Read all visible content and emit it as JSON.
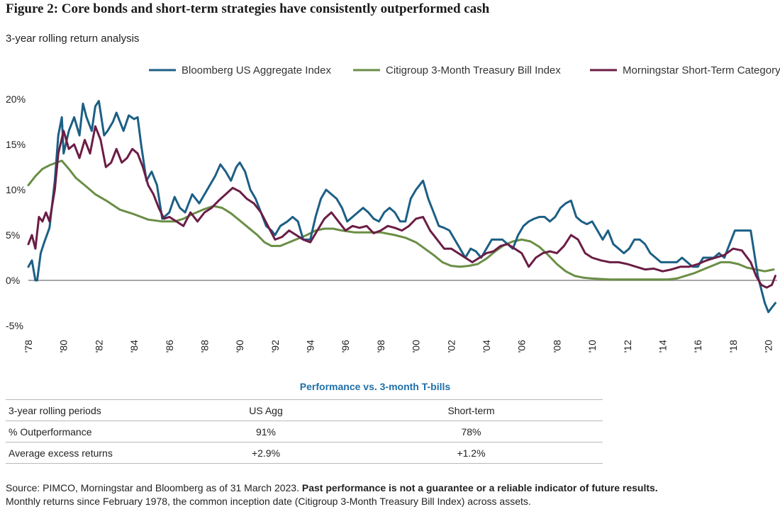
{
  "title": "Figure 2: Core bonds and short-term strategies have consistently outperformed cash",
  "subtitle": "3-year rolling return analysis",
  "colors": {
    "agg": "#1c5f85",
    "tbill": "#6a8e45",
    "shortterm": "#6b1d45",
    "zero": "#8a8a8a"
  },
  "chart_data": {
    "type": "line",
    "y_unit": "%",
    "ylim": [
      -5,
      20
    ],
    "yticks": [
      "20%",
      "15%",
      "10%",
      "5%",
      "0%",
      "-5%"
    ],
    "ytick_values": [
      20,
      15,
      10,
      5,
      0,
      -5
    ],
    "xlim": [
      1978,
      2020.5
    ],
    "xticks": [
      "'78",
      "'80",
      "'82",
      "'84",
      "'86",
      "'88",
      "'90",
      "'92",
      "'94",
      "'96",
      "'98",
      "'00",
      "'02",
      "'04",
      "'06",
      "'08",
      "'10",
      "'12",
      "'14",
      "'16",
      "'18",
      "'20"
    ],
    "xtick_values": [
      1978,
      1980,
      1982,
      1984,
      1986,
      1988,
      1990,
      1992,
      1994,
      1996,
      1998,
      2000,
      2002,
      2004,
      2006,
      2008,
      2010,
      2012,
      2014,
      2016,
      2018,
      2020
    ],
    "legend_position": "top-right",
    "grid": false,
    "series": [
      {
        "name": "Bloomberg US Aggregate Index",
        "color": "#1c5f85",
        "x": [
          1978.0,
          1978.2,
          1978.4,
          1978.5,
          1978.7,
          1978.9,
          1979.2,
          1979.5,
          1979.7,
          1979.9,
          1980.0,
          1980.3,
          1980.6,
          1980.9,
          1981.1,
          1981.3,
          1981.6,
          1981.8,
          1982.0,
          1982.3,
          1982.5,
          1982.8,
          1983.0,
          1983.2,
          1983.4,
          1983.7,
          1984.0,
          1984.2,
          1984.4,
          1984.7,
          1985.0,
          1985.3,
          1985.6,
          1986.0,
          1986.3,
          1986.6,
          1986.9,
          1987.3,
          1987.7,
          1988.0,
          1988.3,
          1988.6,
          1988.9,
          1989.2,
          1989.5,
          1989.8,
          1990.0,
          1990.3,
          1990.6,
          1990.9,
          1991.2,
          1991.5,
          1991.8,
          1992.0,
          1992.3,
          1992.7,
          1993.0,
          1993.3,
          1993.6,
          1994.0,
          1994.3,
          1994.6,
          1994.9,
          1995.2,
          1995.5,
          1995.8,
          1996.1,
          1996.4,
          1996.7,
          1997.0,
          1997.3,
          1997.6,
          1997.9,
          1998.2,
          1998.5,
          1998.8,
          1999.1,
          1999.4,
          1999.7,
          2000.0,
          2000.2,
          2000.4,
          2000.7,
          2001.0,
          2001.3,
          2001.6,
          2001.9,
          2002.2,
          2002.5,
          2002.8,
          2003.1,
          2003.4,
          2003.7,
          2004.0,
          2004.3,
          2004.6,
          2004.9,
          2005.2,
          2005.5,
          2005.8,
          2006.1,
          2006.4,
          2006.7,
          2007.0,
          2007.3,
          2007.6,
          2007.9,
          2008.2,
          2008.5,
          2008.8,
          2009.1,
          2009.4,
          2009.7,
          2010.0,
          2010.3,
          2010.6,
          2010.9,
          2011.2,
          2011.5,
          2011.8,
          2012.1,
          2012.4,
          2012.7,
          2013.0,
          2013.3,
          2013.6,
          2013.9,
          2014.2,
          2014.5,
          2014.8,
          2015.1,
          2015.4,
          2015.7,
          2016.0,
          2016.3,
          2016.6,
          2016.9,
          2017.2,
          2017.5,
          2017.8,
          2018.1,
          2018.4,
          2018.7,
          2019.0,
          2019.2,
          2019.4,
          2019.6,
          2019.8,
          2020.0,
          2020.2,
          2020.4
        ],
        "y": [
          1.5,
          2.2,
          0.0,
          0.0,
          3.0,
          4.2,
          5.8,
          11.0,
          16.0,
          18.0,
          14.0,
          16.5,
          18.0,
          16.0,
          19.5,
          18.0,
          16.5,
          19.2,
          19.8,
          16.0,
          16.5,
          17.5,
          18.5,
          17.5,
          16.5,
          18.2,
          17.8,
          18.0,
          15.0,
          11.0,
          12.0,
          10.5,
          6.8,
          7.5,
          9.2,
          8.0,
          7.5,
          9.5,
          8.5,
          9.5,
          10.5,
          11.5,
          12.8,
          12.0,
          11.0,
          12.5,
          13.0,
          12.0,
          10.0,
          9.0,
          7.5,
          6.0,
          5.5,
          5.0,
          6.0,
          6.5,
          7.0,
          6.5,
          4.5,
          4.5,
          7.0,
          9.0,
          10.0,
          9.5,
          9.0,
          8.0,
          6.5,
          7.0,
          7.5,
          8.0,
          7.5,
          6.8,
          6.5,
          7.5,
          8.0,
          7.5,
          6.5,
          6.5,
          9.0,
          10.0,
          10.5,
          11.0,
          9.0,
          7.5,
          6.0,
          5.8,
          5.5,
          4.5,
          3.5,
          2.5,
          3.5,
          3.2,
          2.5,
          3.5,
          4.5,
          4.5,
          4.5,
          4.0,
          3.5,
          5.0,
          6.0,
          6.5,
          6.8,
          7.0,
          7.0,
          6.5,
          7.0,
          8.0,
          8.5,
          8.8,
          7.0,
          6.5,
          6.2,
          6.5,
          5.5,
          4.5,
          5.5,
          4.0,
          3.5,
          3.0,
          3.5,
          4.5,
          4.5,
          4.0,
          3.0,
          2.5,
          2.0,
          2.0,
          2.0,
          2.0,
          2.5,
          2.0,
          1.5,
          1.5,
          2.5,
          2.5,
          2.5,
          3.0,
          2.5,
          4.0,
          5.5,
          5.5,
          5.5,
          5.5,
          3.0,
          0.5,
          -1.0,
          -2.5,
          -3.5,
          -3.0,
          -2.5
        ]
      },
      {
        "name": "Citigroup 3-Month Treasury Bill Index",
        "color": "#6a8e45",
        "x": [
          1978.0,
          1978.4,
          1978.8,
          1979.2,
          1979.6,
          1979.9,
          1980.3,
          1980.7,
          1981.2,
          1981.8,
          1982.5,
          1983.2,
          1984.0,
          1984.8,
          1985.6,
          1986.3,
          1986.8,
          1987.3,
          1987.9,
          1988.5,
          1989.0,
          1989.5,
          1990.0,
          1990.5,
          1991.0,
          1991.4,
          1991.8,
          1992.3,
          1992.8,
          1993.3,
          1993.8,
          1994.3,
          1994.8,
          1995.3,
          1995.8,
          1996.5,
          1997.2,
          1998.0,
          1998.8,
          1999.4,
          2000.0,
          2000.5,
          2001.0,
          2001.5,
          2002.0,
          2002.5,
          2003.0,
          2003.5,
          2004.0,
          2004.5,
          2005.0,
          2005.5,
          2006.0,
          2006.5,
          2007.0,
          2007.5,
          2008.0,
          2008.5,
          2009.0,
          2009.5,
          2010.0,
          2011.0,
          2012.0,
          2013.0,
          2013.7,
          2014.3,
          2014.8,
          2015.3,
          2015.8,
          2016.3,
          2016.8,
          2017.3,
          2017.8,
          2018.3,
          2018.8,
          2019.3,
          2019.8,
          2020.3
        ],
        "y": [
          10.5,
          11.5,
          12.3,
          12.7,
          13.0,
          13.2,
          12.3,
          11.3,
          10.5,
          9.5,
          8.7,
          7.8,
          7.3,
          6.7,
          6.5,
          6.5,
          6.8,
          7.3,
          7.8,
          8.2,
          8.0,
          7.4,
          6.6,
          5.8,
          5.0,
          4.2,
          3.8,
          3.8,
          4.2,
          4.6,
          5.0,
          5.5,
          5.7,
          5.7,
          5.5,
          5.3,
          5.3,
          5.3,
          5.0,
          4.7,
          4.2,
          3.5,
          2.8,
          2.0,
          1.6,
          1.5,
          1.6,
          1.8,
          2.4,
          3.2,
          3.9,
          4.3,
          4.5,
          4.3,
          3.7,
          2.8,
          1.8,
          1.0,
          0.5,
          0.3,
          0.2,
          0.1,
          0.1,
          0.1,
          0.1,
          0.1,
          0.2,
          0.5,
          0.8,
          1.2,
          1.6,
          2.0,
          2.0,
          1.8,
          1.4,
          1.2,
          1.0,
          1.2
        ]
      },
      {
        "name": "Morningstar Short-Term Category",
        "color": "#6b1d45",
        "x": [
          1978.0,
          1978.2,
          1978.4,
          1978.6,
          1978.8,
          1979.0,
          1979.2,
          1979.5,
          1979.7,
          1980.0,
          1980.3,
          1980.6,
          1980.9,
          1981.2,
          1981.5,
          1981.8,
          1982.1,
          1982.4,
          1982.7,
          1983.0,
          1983.3,
          1983.6,
          1983.9,
          1984.2,
          1984.5,
          1984.8,
          1985.1,
          1985.4,
          1985.7,
          1986.0,
          1986.4,
          1986.8,
          1987.2,
          1987.6,
          1988.0,
          1988.4,
          1988.8,
          1989.2,
          1989.6,
          1990.0,
          1990.4,
          1990.8,
          1991.2,
          1991.6,
          1992.0,
          1992.4,
          1992.8,
          1993.2,
          1993.6,
          1994.0,
          1994.4,
          1994.8,
          1995.2,
          1995.6,
          1996.0,
          1996.4,
          1996.8,
          1997.2,
          1997.6,
          1998.0,
          1998.4,
          1998.8,
          1999.2,
          1999.6,
          2000.0,
          2000.4,
          2000.8,
          2001.2,
          2001.6,
          2002.0,
          2002.4,
          2002.8,
          2003.2,
          2003.6,
          2004.0,
          2004.4,
          2004.8,
          2005.2,
          2005.6,
          2006.0,
          2006.4,
          2006.8,
          2007.2,
          2007.6,
          2008.0,
          2008.4,
          2008.8,
          2009.2,
          2009.6,
          2010.0,
          2010.5,
          2011.0,
          2011.5,
          2012.0,
          2012.5,
          2013.0,
          2013.5,
          2014.0,
          2014.5,
          2015.0,
          2015.5,
          2016.0,
          2016.5,
          2017.0,
          2017.5,
          2018.0,
          2018.5,
          2019.0,
          2019.3,
          2019.6,
          2019.9,
          2020.2,
          2020.4
        ],
        "y": [
          4.0,
          5.0,
          3.5,
          7.0,
          6.5,
          7.5,
          6.5,
          10.0,
          14.0,
          16.5,
          14.5,
          15.0,
          13.5,
          15.5,
          14.0,
          17.0,
          15.5,
          12.5,
          13.0,
          14.5,
          13.0,
          13.5,
          14.5,
          14.0,
          12.5,
          10.5,
          9.5,
          8.0,
          6.8,
          7.0,
          6.5,
          6.0,
          7.5,
          6.5,
          7.5,
          8.0,
          8.8,
          9.5,
          10.2,
          9.8,
          9.0,
          8.5,
          7.5,
          6.0,
          4.5,
          4.8,
          5.5,
          5.0,
          4.5,
          4.2,
          5.5,
          6.8,
          7.5,
          6.5,
          5.5,
          6.0,
          5.8,
          6.0,
          5.2,
          5.5,
          6.0,
          5.8,
          5.5,
          6.0,
          6.8,
          7.0,
          5.5,
          4.5,
          3.5,
          3.5,
          3.0,
          2.5,
          2.0,
          2.5,
          3.0,
          3.2,
          3.8,
          4.0,
          3.5,
          3.0,
          1.5,
          2.5,
          3.0,
          3.2,
          3.0,
          3.8,
          5.0,
          4.5,
          3.0,
          2.5,
          2.2,
          2.0,
          2.0,
          1.8,
          1.5,
          1.2,
          1.3,
          1.0,
          1.2,
          1.5,
          1.5,
          1.8,
          2.2,
          2.5,
          2.8,
          3.5,
          3.3,
          2.0,
          0.5,
          -0.5,
          -0.8,
          -0.5,
          0.5
        ]
      }
    ]
  },
  "table": {
    "title": "Performance vs. 3-month T-bills",
    "headers": [
      "3-year rolling periods",
      "US Agg",
      "Short-term"
    ],
    "rows": [
      [
        "% Outperformance",
        "91%",
        "78%"
      ],
      [
        "Average excess returns",
        "+2.9%",
        "+1.2%"
      ]
    ]
  },
  "source": {
    "plain": "Source: PIMCO, Morningstar and Bloomberg as of 31 March 2023. ",
    "bold": "Past performance is not a guarantee or a reliable indicator of future results.",
    "line2": "Monthly returns since February 1978, the common inception date (Citigroup 3-Month Treasury Bill Index) across assets."
  }
}
